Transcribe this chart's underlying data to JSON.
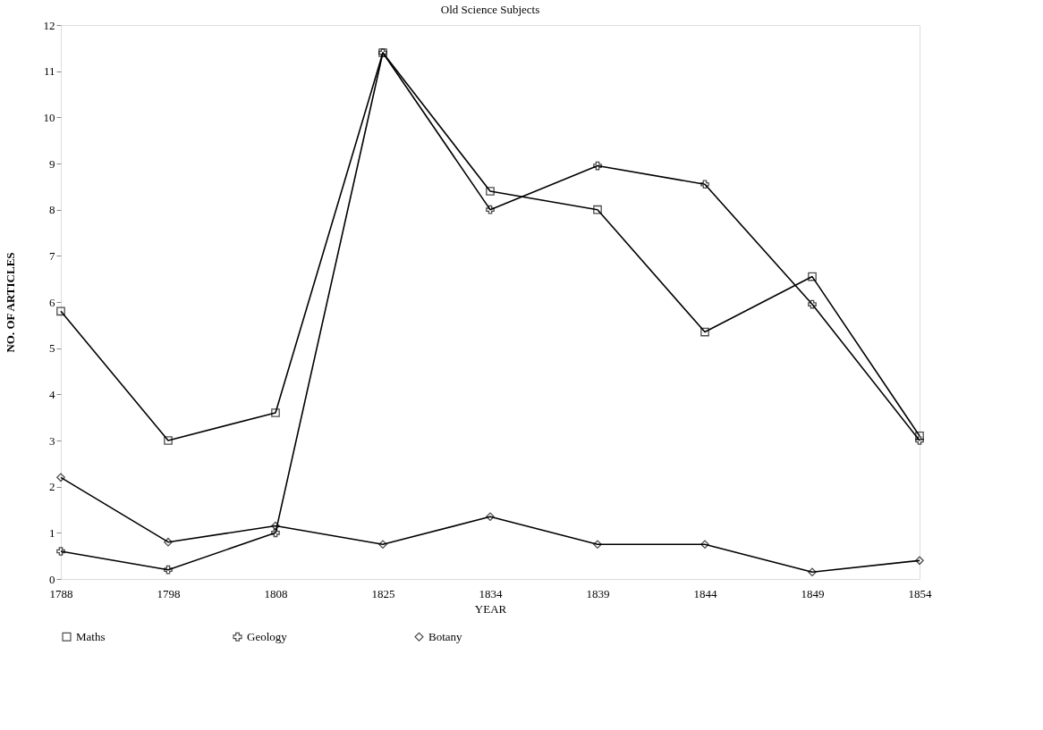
{
  "chart_data": {
    "type": "line",
    "title": "Old Science Subjects",
    "xlabel": "YEAR",
    "ylabel": "NO. OF ARTICLES",
    "categories": [
      "1788",
      "1798",
      "1808",
      "1825",
      "1834",
      "1839",
      "1844",
      "1849",
      "1854"
    ],
    "series": [
      {
        "name": "Maths",
        "color": "#000000",
        "marker": "square",
        "values": [
          5.8,
          3.0,
          3.6,
          11.4,
          8.4,
          8.0,
          5.35,
          6.55,
          3.1
        ]
      },
      {
        "name": "Geology",
        "color": "#000000",
        "marker": "cross",
        "values": [
          0.6,
          0.2,
          1.0,
          11.4,
          8.0,
          8.95,
          8.55,
          5.95,
          3.0
        ]
      },
      {
        "name": "Botany",
        "color": "#000000",
        "marker": "diamond",
        "values": [
          2.2,
          0.8,
          1.15,
          0.75,
          1.35,
          0.75,
          0.75,
          0.15,
          0.4
        ]
      }
    ],
    "ylim": [
      0,
      12
    ],
    "yticks": [
      0,
      1,
      2,
      3,
      4,
      5,
      6,
      7,
      8,
      9,
      10,
      11,
      12
    ],
    "grid": false,
    "legend": "bottom",
    "line_style": "solid"
  }
}
